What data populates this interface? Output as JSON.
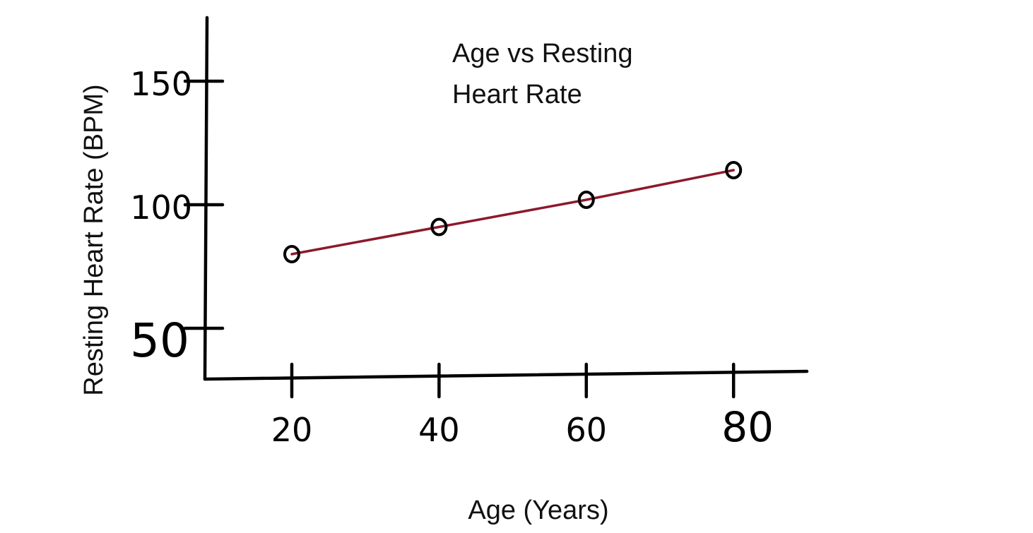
{
  "chart_data": {
    "type": "line",
    "title_lines": [
      "Age vs Resting",
      "Heart Rate"
    ],
    "xlabel": "Age (Years)",
    "ylabel": "Resting Heart Rate (BPM)",
    "x_ticks": [
      20,
      40,
      60,
      80
    ],
    "y_ticks": [
      50,
      100,
      150
    ],
    "x": [
      20,
      40,
      60,
      80
    ],
    "series": [
      {
        "values": [
          80,
          91,
          102,
          114
        ]
      }
    ],
    "markers": "open-circle",
    "line_color": "#8B1A2B",
    "marker_color": "#000000",
    "grid": false,
    "legend": "none"
  }
}
